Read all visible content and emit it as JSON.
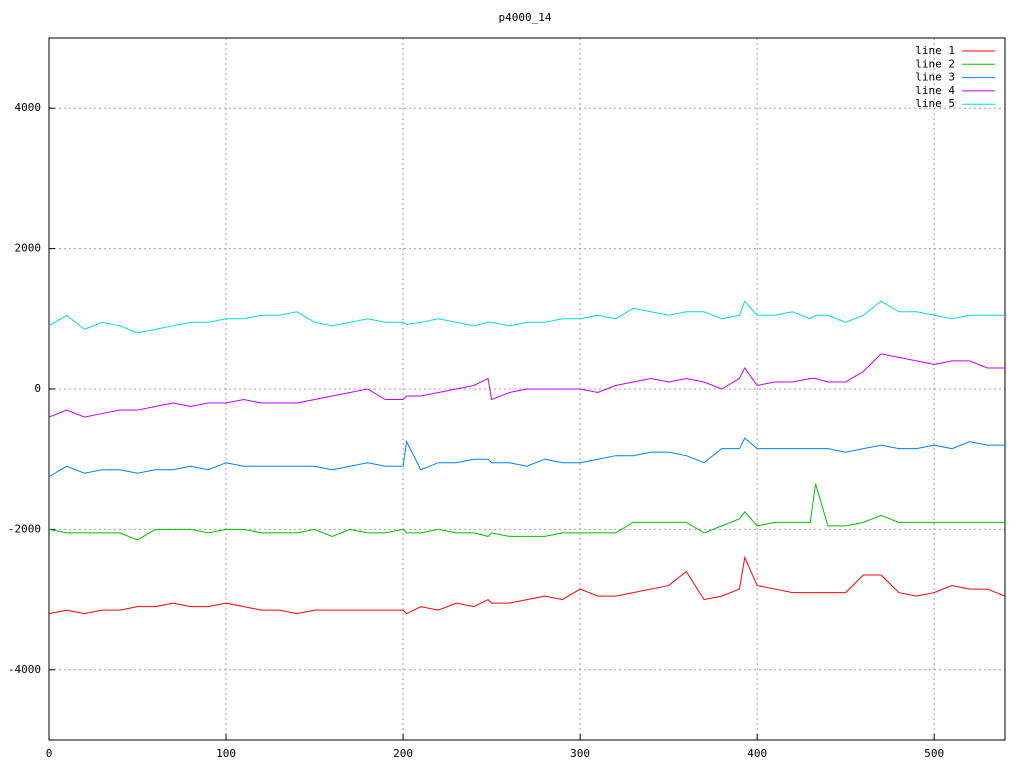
{
  "chart_data": {
    "type": "line",
    "title": "p4000_14",
    "x": [
      0,
      10,
      20,
      30,
      40,
      50,
      60,
      70,
      80,
      90,
      100,
      110,
      120,
      130,
      140,
      150,
      160,
      170,
      180,
      190,
      200,
      202,
      210,
      220,
      230,
      240,
      248,
      250,
      260,
      270,
      280,
      290,
      300,
      310,
      320,
      330,
      340,
      350,
      360,
      370,
      380,
      390,
      393,
      400,
      410,
      420,
      430,
      433,
      440,
      450,
      460,
      470,
      480,
      490,
      500,
      510,
      520,
      530,
      540
    ],
    "series": [
      {
        "name": "line 1",
        "color": "#ff0000",
        "values": [
          -3200,
          -3150,
          -3200,
          -3150,
          -3150,
          -3100,
          -3100,
          -3050,
          -3100,
          -3100,
          -3050,
          -3100,
          -3150,
          -3150,
          -3200,
          -3150,
          -3150,
          -3150,
          -3150,
          -3150,
          -3150,
          -3200,
          -3100,
          -3150,
          -3050,
          -3100,
          -3000,
          -3050,
          -3050,
          -3000,
          -2950,
          -3000,
          -2850,
          -2950,
          -2950,
          -2900,
          -2850,
          -2800,
          -2600,
          -3000,
          -2950,
          -2850,
          -2400,
          -2800,
          -2850,
          -2900,
          -2900,
          -2900,
          -2900,
          -2900,
          -2650,
          -2650,
          -2900,
          -2950,
          -2900,
          -2800,
          -2850,
          -2850,
          -2950
        ]
      },
      {
        "name": "line 2",
        "color": "#00c000",
        "values": [
          -2000,
          -2050,
          -2050,
          -2050,
          -2050,
          -2150,
          -2000,
          -2000,
          -2000,
          -2050,
          -2000,
          -2000,
          -2050,
          -2050,
          -2050,
          -2000,
          -2100,
          -2000,
          -2050,
          -2050,
          -2000,
          -2050,
          -2050,
          -2000,
          -2050,
          -2050,
          -2100,
          -2050,
          -2100,
          -2100,
          -2100,
          -2050,
          -2050,
          -2050,
          -2050,
          -1900,
          -1900,
          -1900,
          -1900,
          -2050,
          -1950,
          -1850,
          -1750,
          -1950,
          -1900,
          -1900,
          -1900,
          -1350,
          -1950,
          -1950,
          -1900,
          -1800,
          -1900,
          -1900,
          -1900,
          -1900,
          -1900,
          -1900,
          -1900
        ]
      },
      {
        "name": "line 3",
        "color": "#0080ff",
        "values": [
          -1250,
          -1100,
          -1200,
          -1150,
          -1150,
          -1200,
          -1150,
          -1150,
          -1100,
          -1150,
          -1050,
          -1100,
          -1100,
          -1100,
          -1100,
          -1100,
          -1150,
          -1100,
          -1050,
          -1100,
          -1100,
          -750,
          -1150,
          -1050,
          -1050,
          -1000,
          -1000,
          -1050,
          -1050,
          -1100,
          -1000,
          -1050,
          -1050,
          -1000,
          -950,
          -950,
          -900,
          -900,
          -950,
          -1050,
          -850,
          -850,
          -700,
          -850,
          -850,
          -850,
          -850,
          -850,
          -850,
          -900,
          -850,
          -800,
          -850,
          -850,
          -800,
          -850,
          -750,
          -800,
          -800
        ]
      },
      {
        "name": "line 4",
        "color": "#c000ff",
        "values": [
          -400,
          -300,
          -400,
          -350,
          -300,
          -300,
          -250,
          -200,
          -250,
          -200,
          -200,
          -150,
          -200,
          -200,
          -200,
          -150,
          -100,
          -50,
          0,
          -150,
          -150,
          -100,
          -100,
          -50,
          0,
          50,
          150,
          -150,
          -50,
          0,
          0,
          0,
          0,
          -50,
          50,
          100,
          150,
          100,
          150,
          100,
          0,
          150,
          300,
          50,
          100,
          100,
          150,
          150,
          100,
          100,
          250,
          500,
          450,
          400,
          350,
          400,
          400,
          300,
          300
        ]
      },
      {
        "name": "line 5",
        "color": "#00dddd",
        "values": [
          900,
          1050,
          850,
          950,
          900,
          800,
          850,
          900,
          950,
          950,
          1000,
          1000,
          1050,
          1050,
          1100,
          950,
          900,
          950,
          1000,
          950,
          950,
          920,
          950,
          1000,
          950,
          900,
          950,
          950,
          900,
          950,
          950,
          1000,
          1000,
          1050,
          1000,
          1150,
          1100,
          1050,
          1100,
          1100,
          1000,
          1050,
          1250,
          1050,
          1050,
          1100,
          1000,
          1050,
          1050,
          950,
          1050,
          1250,
          1100,
          1100,
          1050,
          1000,
          1050,
          1050,
          1050
        ]
      }
    ],
    "xlim": [
      0,
      540
    ],
    "xticks": [
      0,
      100,
      200,
      300,
      400,
      500
    ],
    "ylim": [
      -5000,
      5000
    ],
    "yticks": [
      -4000,
      -2000,
      0,
      2000,
      4000
    ],
    "grid": true,
    "legend": "top-right"
  }
}
